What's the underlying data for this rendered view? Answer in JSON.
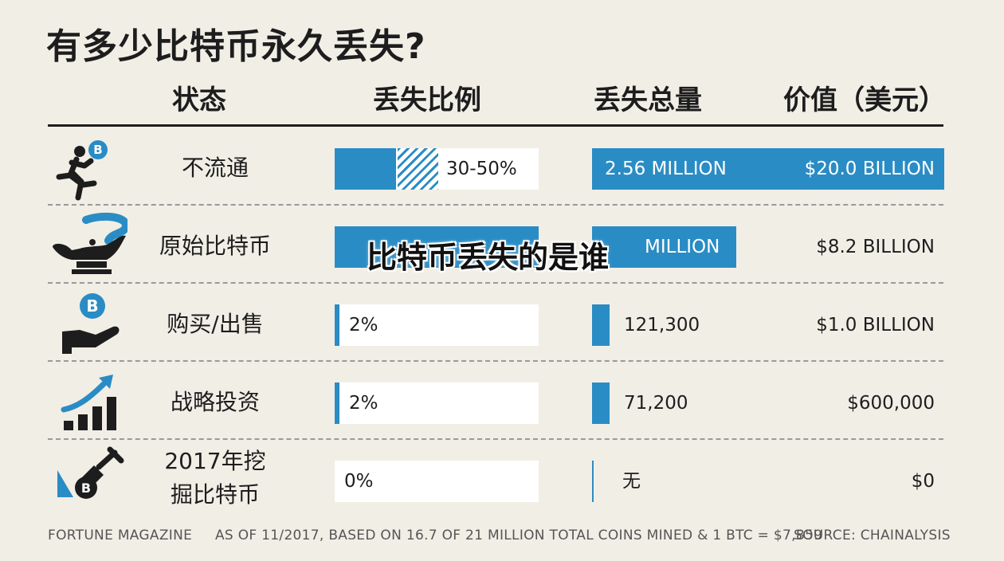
{
  "title": "有多少比特币永久丢失?",
  "headers": {
    "status": "状态",
    "ratio": "丢失比例",
    "total": "丢失总量",
    "value": "价值（美元）"
  },
  "overlay_text": "比特币丢失的是谁",
  "footer": {
    "left": "FORTUNE MAGAZINE",
    "middle": "AS OF 11/2017, BASED ON 16.7 OF 21 MILLION TOTAL COINS MINED & 1 BTC = $7,859",
    "right": "SOURCE: CHAINALYSIS"
  },
  "colors": {
    "accent": "#2a8cc4",
    "background": "#f1eee6",
    "ink": "#1d1d1d"
  },
  "chart_data": {
    "type": "table",
    "title": "有多少比特币永久丢失?",
    "columns": [
      "状态",
      "丢失比例",
      "丢失总量",
      "价值（美元）"
    ],
    "rows": [
      {
        "icon": "running-person-bitcoin-icon",
        "status": [
          "不流通"
        ],
        "ratio_label": "30-50%",
        "ratio_min": 30,
        "ratio_max": 50,
        "amount_label": "2.56 MILLION",
        "amount": 2560000,
        "value_label": "$20.0 BILLION",
        "value": 20000000000
      },
      {
        "icon": "genie-lamp-icon",
        "status": [
          "原始比特币"
        ],
        "ratio_label": "",
        "ratio_min": 20,
        "ratio_max": 20,
        "amount_label": "MILLION",
        "amount": 1050000,
        "value_label": "$8.2 BILLION",
        "value": 8200000000
      },
      {
        "icon": "hand-bitcoin-icon",
        "status": [
          "购买/出售"
        ],
        "ratio_label": "2%",
        "ratio_min": 2,
        "ratio_max": 2,
        "amount_label": "121,300",
        "amount": 121300,
        "value_label": "$1.0 BILLION",
        "value": 1000000000
      },
      {
        "icon": "growth-chart-icon",
        "status": [
          "战略投资"
        ],
        "ratio_label": "2%",
        "ratio_min": 2,
        "ratio_max": 2,
        "amount_label": "71,200",
        "amount": 71200,
        "value_label": "$600,000",
        "value": 600000
      },
      {
        "icon": "shovel-bitcoin-icon",
        "status": [
          "2017年挖",
          "掘比特币"
        ],
        "ratio_label": "0%",
        "ratio_min": 0,
        "ratio_max": 0,
        "amount_label": "无",
        "amount": 0,
        "value_label": "$0",
        "value": 0
      }
    ]
  }
}
